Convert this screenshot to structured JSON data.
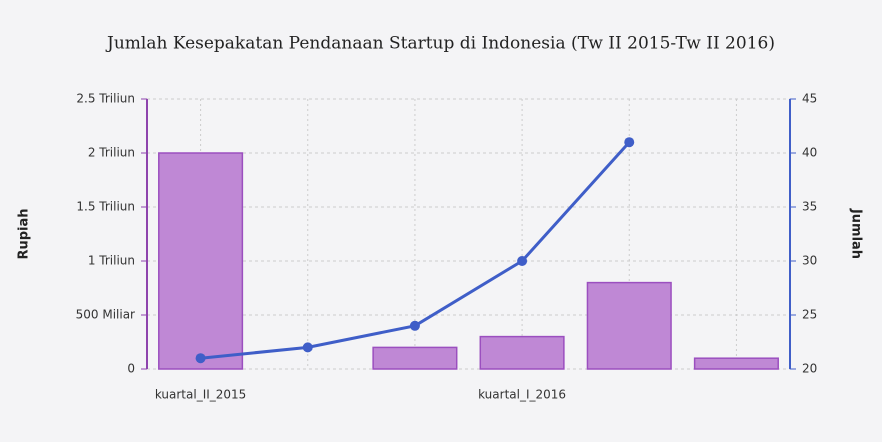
{
  "chart_data": {
    "type": "bar-line",
    "title": "Jumlah Kesepakatan Pendanaan Startup di Indonesia (Tw II 2015-Tw II 2016)",
    "categories": [
      "kuartal_II_2015",
      null,
      null,
      "kuartal_I_2016",
      null,
      null
    ],
    "series": [
      {
        "name": "Rupiah",
        "type": "bar",
        "color": "#bf88d5",
        "axis": "y",
        "values": [
          2000000000000,
          null,
          200000000000,
          300000000000,
          800000000000,
          100000000000
        ]
      },
      {
        "name": "Jumlah",
        "type": "line",
        "color": "#3f5ec8",
        "axis": "y2",
        "values": [
          21,
          22,
          24,
          30,
          41,
          null
        ]
      }
    ],
    "ylabel": "Rupiah",
    "y2label": "Jumlah",
    "ylim": [
      0,
      2500000000000
    ],
    "yticks": [
      0,
      {
        "value": 500000000000,
        "label": "500 Miliar"
      },
      {
        "value": 1000000000000,
        "label": "1 Triliun"
      },
      {
        "value": 1500000000000,
        "label": "1.5 Triliun"
      },
      {
        "value": 2000000000000,
        "label": "2 Triliun"
      },
      {
        "value": 2500000000000,
        "label": "2.5 Triliun"
      }
    ],
    "y2lim": [
      20,
      45
    ],
    "y2ticks": [
      20,
      25,
      30,
      35,
      40,
      45
    ],
    "grid": true
  }
}
